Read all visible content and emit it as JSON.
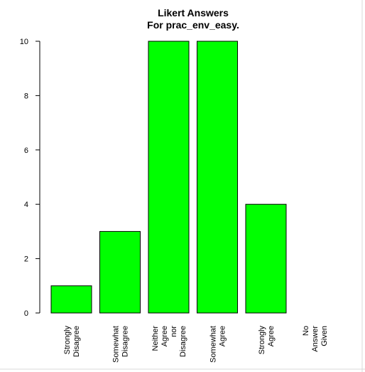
{
  "chart_data": {
    "type": "bar",
    "title": "Likert Answers",
    "subtitle": "For prac_env_easy.",
    "xlabel": "",
    "ylabel": "",
    "categories": [
      [
        "Strongly",
        "Disagree"
      ],
      [
        "Somewhat",
        "Disagree"
      ],
      [
        "Neither",
        "Agree",
        "nor",
        "Disagree"
      ],
      [
        "Somewhat",
        "Agree"
      ],
      [
        "Strongly",
        "Agree"
      ],
      [
        "No",
        "Answer",
        "Given"
      ]
    ],
    "values": [
      1,
      3,
      10,
      10,
      4,
      0
    ],
    "ylim": [
      0,
      10
    ],
    "yticks": [
      0,
      2,
      4,
      6,
      8,
      10
    ],
    "bar_color": "#00ff00",
    "grid": false,
    "legend": "none"
  }
}
